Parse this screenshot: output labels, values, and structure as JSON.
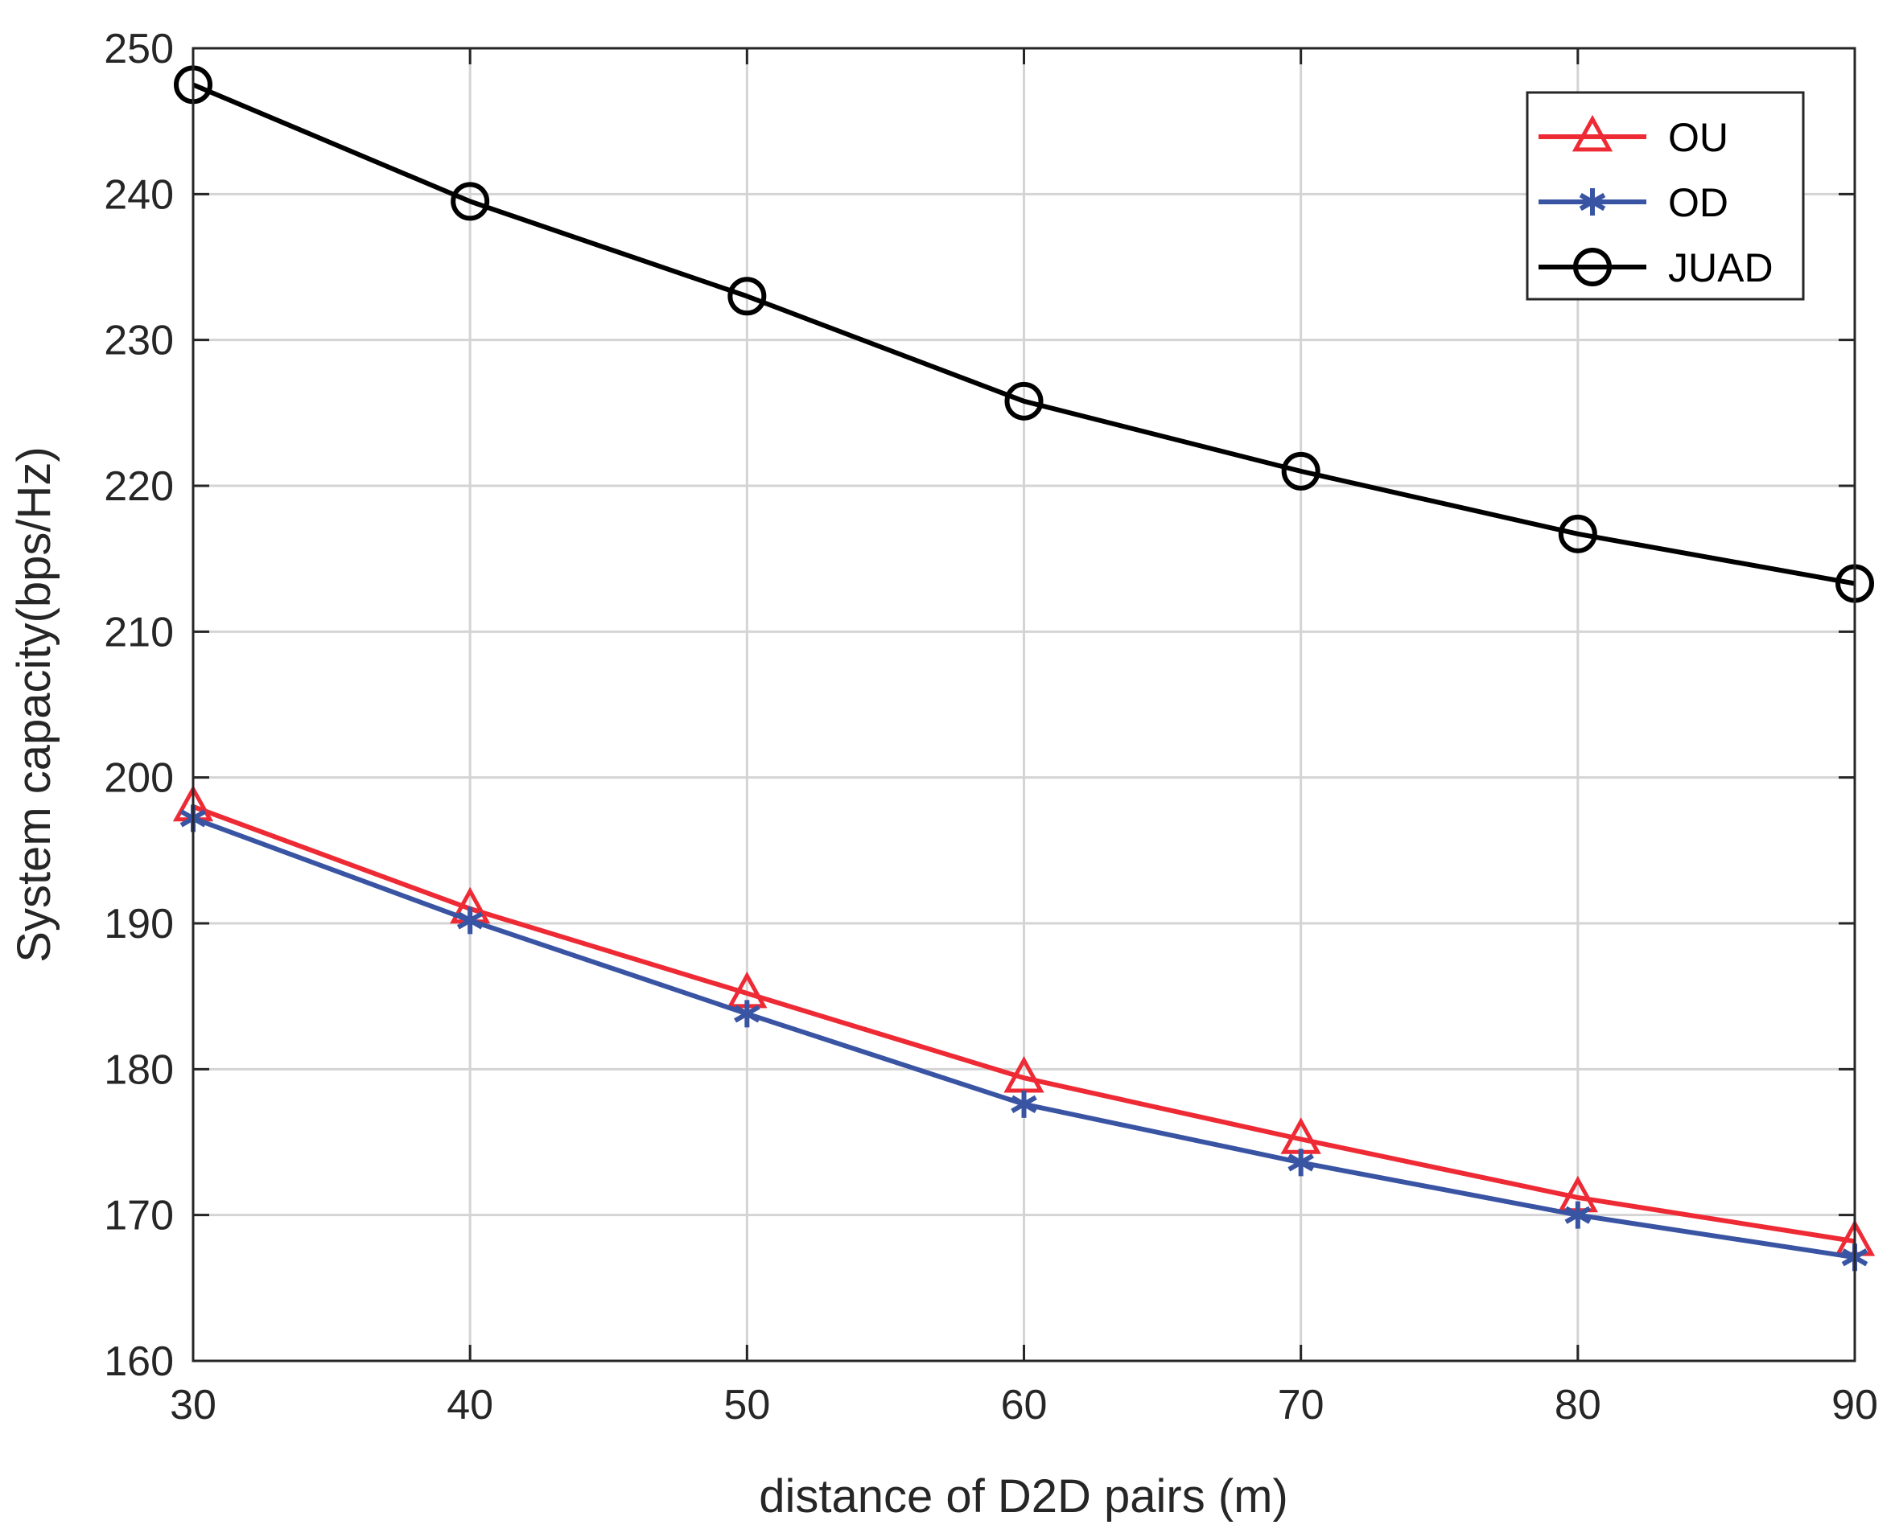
{
  "chart_data": {
    "type": "line",
    "title": "",
    "xlabel": "distance of D2D pairs (m)",
    "ylabel": "System capacity(bps/Hz)",
    "x": [
      30,
      40,
      50,
      60,
      70,
      80,
      90
    ],
    "xlim": [
      30,
      90
    ],
    "ylim": [
      160,
      250
    ],
    "xticks": [
      30,
      40,
      50,
      60,
      70,
      80,
      90
    ],
    "yticks": [
      160,
      170,
      180,
      190,
      200,
      210,
      220,
      230,
      240,
      250
    ],
    "grid": true,
    "legend_position": "top-right",
    "series": [
      {
        "name": "OU",
        "color": "#ee2a35",
        "marker": "triangle",
        "values": [
          198.0,
          191.0,
          185.2,
          179.4,
          175.2,
          171.2,
          168.2
        ]
      },
      {
        "name": "OD",
        "color": "#3a54a4",
        "marker": "asterisk",
        "values": [
          197.2,
          190.2,
          183.8,
          177.6,
          173.6,
          170.0,
          167.1
        ]
      },
      {
        "name": "JUAD",
        "color": "#000000",
        "marker": "circle",
        "values": [
          247.5,
          239.5,
          233.0,
          225.8,
          221.0,
          216.7,
          213.3
        ]
      }
    ]
  }
}
